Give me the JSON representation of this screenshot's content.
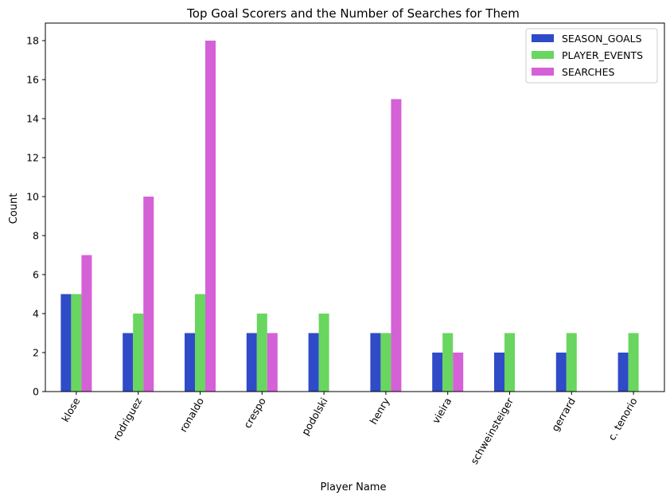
{
  "chart_data": {
    "type": "bar",
    "title": "Top Goal Scorers and the Number of Searches for Them",
    "xlabel": "Player Name",
    "ylabel": "Count",
    "ylim": [
      0,
      18.9
    ],
    "yticks": [
      0,
      2,
      4,
      6,
      8,
      10,
      12,
      14,
      16,
      18
    ],
    "categories": [
      "klose",
      "rodriguez",
      "ronaldo",
      "crespo",
      "podolski",
      "henry",
      "vieira",
      "schweinsteiger",
      "gerrard",
      "c. tenorio"
    ],
    "series": [
      {
        "name": "SEASON_GOALS",
        "color": "#2f4bc7",
        "values": [
          5,
          3,
          3,
          3,
          3,
          3,
          2,
          2,
          2,
          2
        ]
      },
      {
        "name": "PLAYER_EVENTS",
        "color": "#69d65f",
        "values": [
          5,
          4,
          5,
          4,
          4,
          3,
          3,
          3,
          3,
          3
        ]
      },
      {
        "name": "SEARCHES",
        "color": "#d561d6",
        "values": [
          7,
          10,
          18,
          3,
          0,
          15,
          2,
          0,
          0,
          0
        ]
      }
    ],
    "legend_position": "top-right",
    "grid": false
  }
}
